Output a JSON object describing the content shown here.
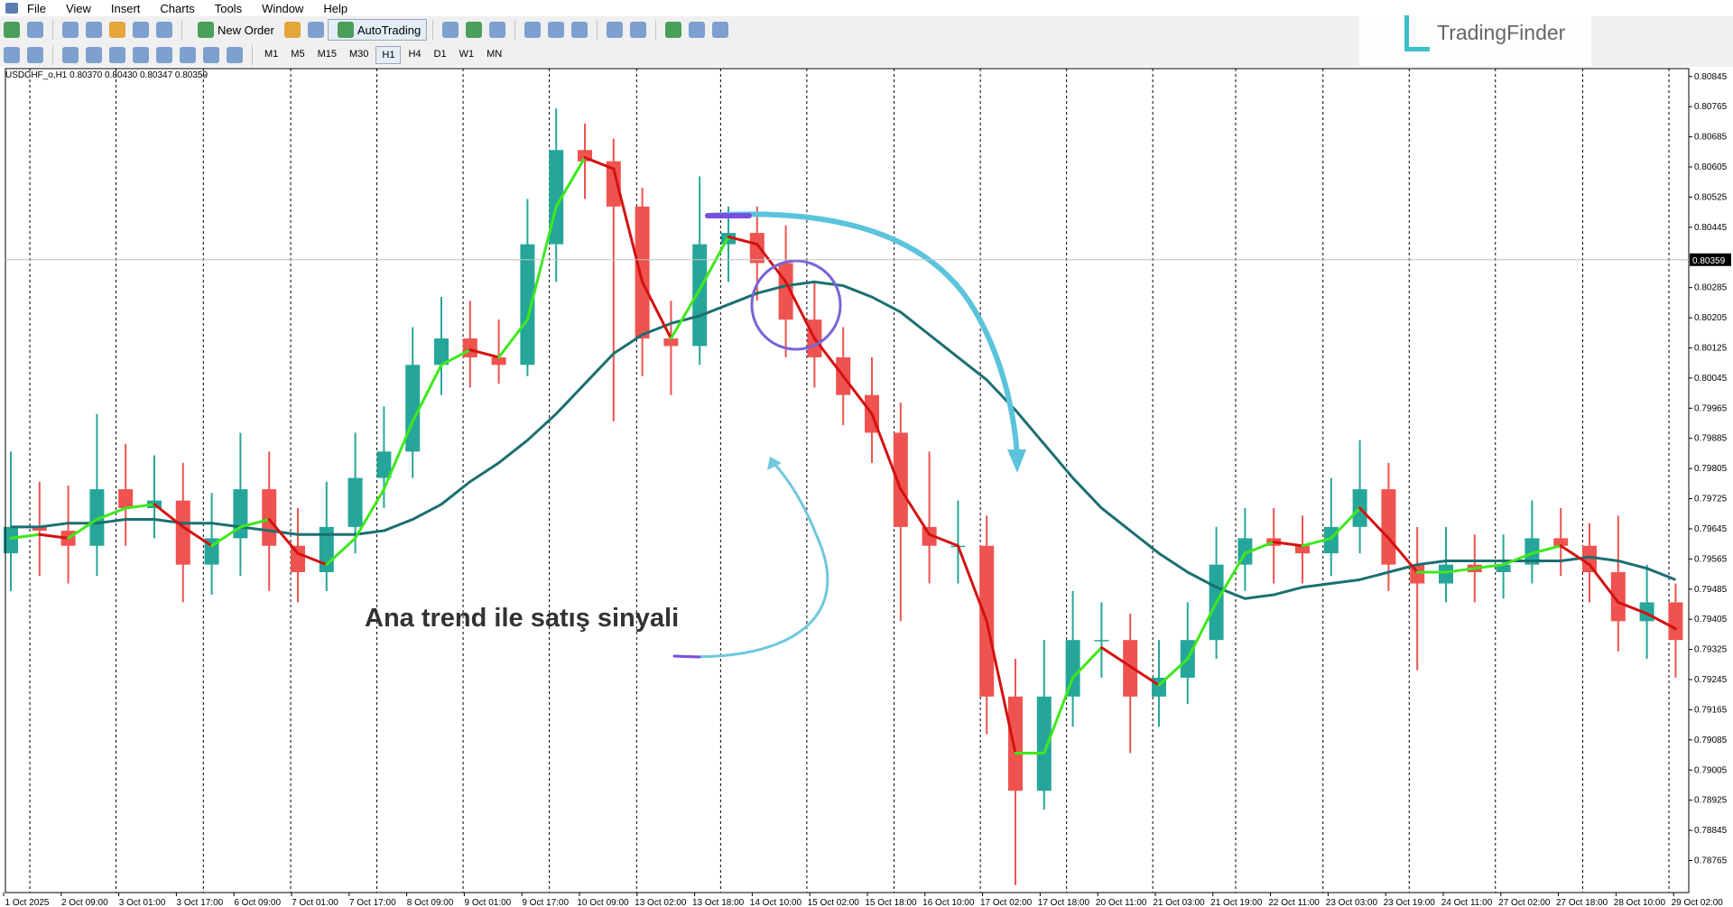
{
  "menu": [
    "File",
    "View",
    "Insert",
    "Charts",
    "Tools",
    "Window",
    "Help"
  ],
  "toolbar": {
    "new_order": "New Order",
    "auto_trading": "AutoTrading"
  },
  "timeframes": [
    "M1",
    "M5",
    "M15",
    "M30",
    "H1",
    "H4",
    "D1",
    "W1",
    "MN"
  ],
  "logo": "TradingFinder",
  "chart_data": {
    "type": "candlestick",
    "title": "USDCHF_o,H1  0.80370 0.80430 0.80347 0.80359",
    "annotation": "Ana trend ile satış sinyali",
    "current_price": 0.80359,
    "ylim": [
      0.7868,
      0.80866
    ],
    "yticks": [
      0.80845,
      0.80765,
      0.80685,
      0.80605,
      0.80525,
      0.80445,
      0.80285,
      0.80205,
      0.80125,
      0.80045,
      0.79965,
      0.79885,
      0.79805,
      0.79725,
      0.79645,
      0.79565,
      0.79485,
      0.79405,
      0.79325,
      0.79245,
      0.79165,
      0.79085,
      0.79005,
      0.78925,
      0.78845,
      0.78765
    ],
    "x_tick_labels": [
      "1 Oct 2025",
      "2 Oct 09:00",
      "3 Oct 01:00",
      "3 Oct 17:00",
      "6 Oct 09:00",
      "7 Oct 01:00",
      "7 Oct 17:00",
      "8 Oct 09:00",
      "9 Oct 01:00",
      "9 Oct 17:00",
      "10 Oct 09:00",
      "13 Oct 02:00",
      "13 Oct 18:00",
      "14 Oct 10:00",
      "15 Oct 02:00",
      "15 Oct 18:00",
      "16 Oct 10:00",
      "17 Oct 02:00",
      "17 Oct 18:00",
      "20 Oct 11:00",
      "21 Oct 03:00",
      "21 Oct 19:00",
      "22 Oct 11:00",
      "23 Oct 03:00",
      "23 Oct 19:00",
      "24 Oct 11:00",
      "27 Oct 02:00",
      "27 Oct 18:00",
      "28 Oct 10:00",
      "29 Oct 02:00"
    ],
    "up_color": "#26a69a",
    "down_color": "#ef5350",
    "open": [
      0.7958,
      0.7965,
      0.7964,
      0.796,
      0.7975,
      0.797,
      0.7972,
      0.7955,
      0.7962,
      0.7975,
      0.796,
      0.7953,
      0.7965,
      0.7978,
      0.7985,
      0.8008,
      0.8015,
      0.801,
      0.8008,
      0.804,
      0.8065,
      0.8062,
      0.805,
      0.8015,
      0.8013,
      0.804,
      0.8043,
      0.8035,
      0.802,
      0.801,
      0.8,
      0.799,
      0.7965,
      0.796,
      0.796,
      0.792,
      0.7895,
      0.792,
      0.7935,
      0.7935,
      0.792,
      0.7925,
      0.7935,
      0.7955,
      0.7962,
      0.796,
      0.7958,
      0.7965,
      0.7975,
      0.7955,
      0.795,
      0.7955,
      0.7953,
      0.7955,
      0.7962,
      0.796,
      0.7953,
      0.794,
      0.7945
    ],
    "high": [
      0.7985,
      0.7977,
      0.7976,
      0.7995,
      0.7987,
      0.7984,
      0.7982,
      0.7974,
      0.799,
      0.7985,
      0.797,
      0.7977,
      0.799,
      0.7997,
      0.8018,
      0.8026,
      0.8025,
      0.802,
      0.8052,
      0.8076,
      0.8072,
      0.8068,
      0.8055,
      0.8025,
      0.8058,
      0.805,
      0.805,
      0.8045,
      0.803,
      0.8018,
      0.801,
      0.7998,
      0.7985,
      0.7972,
      0.7968,
      0.793,
      0.7935,
      0.7948,
      0.7945,
      0.7942,
      0.7935,
      0.7945,
      0.7965,
      0.797,
      0.797,
      0.7968,
      0.7978,
      0.7988,
      0.7982,
      0.7965,
      0.7965,
      0.7963,
      0.7963,
      0.7972,
      0.797,
      0.7966,
      0.7968,
      0.7955,
      0.795
    ],
    "low": [
      0.7948,
      0.7952,
      0.795,
      0.7952,
      0.796,
      0.7962,
      0.7945,
      0.7947,
      0.7952,
      0.7948,
      0.7945,
      0.7948,
      0.7958,
      0.797,
      0.7978,
      0.8,
      0.8002,
      0.8003,
      0.8005,
      0.803,
      0.8052,
      0.7993,
      0.8005,
      0.8,
      0.8008,
      0.803,
      0.8025,
      0.801,
      0.8002,
      0.7992,
      0.7982,
      0.794,
      0.795,
      0.795,
      0.791,
      0.787,
      0.789,
      0.7912,
      0.7925,
      0.7905,
      0.7912,
      0.7918,
      0.793,
      0.7948,
      0.795,
      0.795,
      0.7952,
      0.7958,
      0.7948,
      0.7927,
      0.7945,
      0.7945,
      0.7946,
      0.795,
      0.7952,
      0.7945,
      0.7932,
      0.793,
      0.7925
    ],
    "close": [
      0.7965,
      0.7964,
      0.796,
      0.7975,
      0.797,
      0.7972,
      0.7955,
      0.7962,
      0.7975,
      0.796,
      0.7953,
      0.7965,
      0.7978,
      0.7985,
      0.8008,
      0.8015,
      0.801,
      0.8008,
      0.804,
      0.8065,
      0.8062,
      0.805,
      0.8015,
      0.8013,
      0.804,
      0.8043,
      0.8035,
      0.802,
      0.801,
      0.8,
      0.799,
      0.7965,
      0.796,
      0.796,
      0.792,
      0.7895,
      0.792,
      0.7935,
      0.7935,
      0.792,
      0.7925,
      0.7935,
      0.7955,
      0.7962,
      0.796,
      0.7958,
      0.7965,
      0.7975,
      0.7955,
      0.795,
      0.7955,
      0.7953,
      0.7955,
      0.7962,
      0.796,
      0.7953,
      0.794,
      0.7945,
      0.7935
    ],
    "fast_ma": {
      "up_color": "#3ee81c",
      "down_color": "#d41111",
      "values": [
        0.7962,
        0.7963,
        0.7962,
        0.7967,
        0.797,
        0.7971,
        0.7965,
        0.796,
        0.7965,
        0.7967,
        0.7958,
        0.7955,
        0.7962,
        0.7975,
        0.7993,
        0.8008,
        0.8012,
        0.801,
        0.802,
        0.805,
        0.8063,
        0.806,
        0.803,
        0.8015,
        0.8028,
        0.8042,
        0.804,
        0.803,
        0.8015,
        0.8005,
        0.7995,
        0.7975,
        0.7963,
        0.796,
        0.794,
        0.7905,
        0.7905,
        0.7925,
        0.7933,
        0.7928,
        0.7923,
        0.793,
        0.7945,
        0.7958,
        0.7961,
        0.796,
        0.7962,
        0.797,
        0.7962,
        0.7953,
        0.7953,
        0.7954,
        0.7955,
        0.7958,
        0.796,
        0.7955,
        0.7945,
        0.7942,
        0.7938
      ]
    },
    "slow_ma": {
      "color": "#1b6f72",
      "values": [
        0.7965,
        0.7965,
        0.7966,
        0.7966,
        0.7967,
        0.7967,
        0.7966,
        0.7966,
        0.7965,
        0.7964,
        0.7963,
        0.7963,
        0.7963,
        0.7964,
        0.7967,
        0.7971,
        0.7977,
        0.7982,
        0.7988,
        0.7995,
        0.8003,
        0.8011,
        0.8016,
        0.8019,
        0.8021,
        0.8024,
        0.8027,
        0.8029,
        0.803,
        0.8029,
        0.8026,
        0.8022,
        0.8016,
        0.801,
        0.8004,
        0.7996,
        0.7987,
        0.7978,
        0.797,
        0.7964,
        0.7958,
        0.7953,
        0.7949,
        0.7946,
        0.7947,
        0.7949,
        0.795,
        0.7951,
        0.7953,
        0.7955,
        0.7956,
        0.7956,
        0.7956,
        0.7956,
        0.7956,
        0.7957,
        0.7956,
        0.7954,
        0.7951
      ]
    }
  }
}
